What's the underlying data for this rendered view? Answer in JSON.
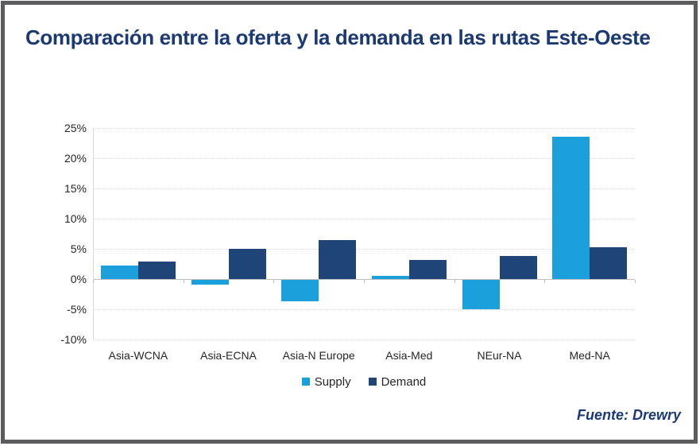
{
  "title": {
    "text": "Comparación entre la oferta y la demanda en las rutas Este-Oeste",
    "color": "#1b3a73"
  },
  "source": {
    "text": "Fuente: Drewry"
  },
  "frame": {
    "border_color": "#5c5c5e"
  },
  "chart_data": {
    "type": "bar",
    "title": "Comparación entre la oferta y la demanda en las rutas Este-Oeste",
    "categories": [
      "Asia-WCNA",
      "Asia-ECNA",
      "Asia-N Europe",
      "Asia-Med",
      "NEur-NA",
      "Med-NA"
    ],
    "series": [
      {
        "name": "Supply",
        "color": "#1ba0dc",
        "values": [
          2.3,
          -0.8,
          -3.6,
          0.5,
          -4.9,
          23.6
        ]
      },
      {
        "name": "Demand",
        "color": "#1f4477",
        "values": [
          2.9,
          5.0,
          6.4,
          3.1,
          3.8,
          5.3
        ]
      }
    ],
    "xlabel": "",
    "ylabel": "",
    "ylim": [
      -10,
      25
    ],
    "ytick_step": 5,
    "ytick_format": "percent",
    "ytick_labels": [
      "25%",
      "20%",
      "15%",
      "10%",
      "5%",
      "0%",
      "-5%",
      "-10%"
    ],
    "grid": "horizontal-dotted",
    "legend_position": "bottom-center",
    "gridline_color": "#d9d9d9",
    "axis_color": "#bfbfbf"
  }
}
